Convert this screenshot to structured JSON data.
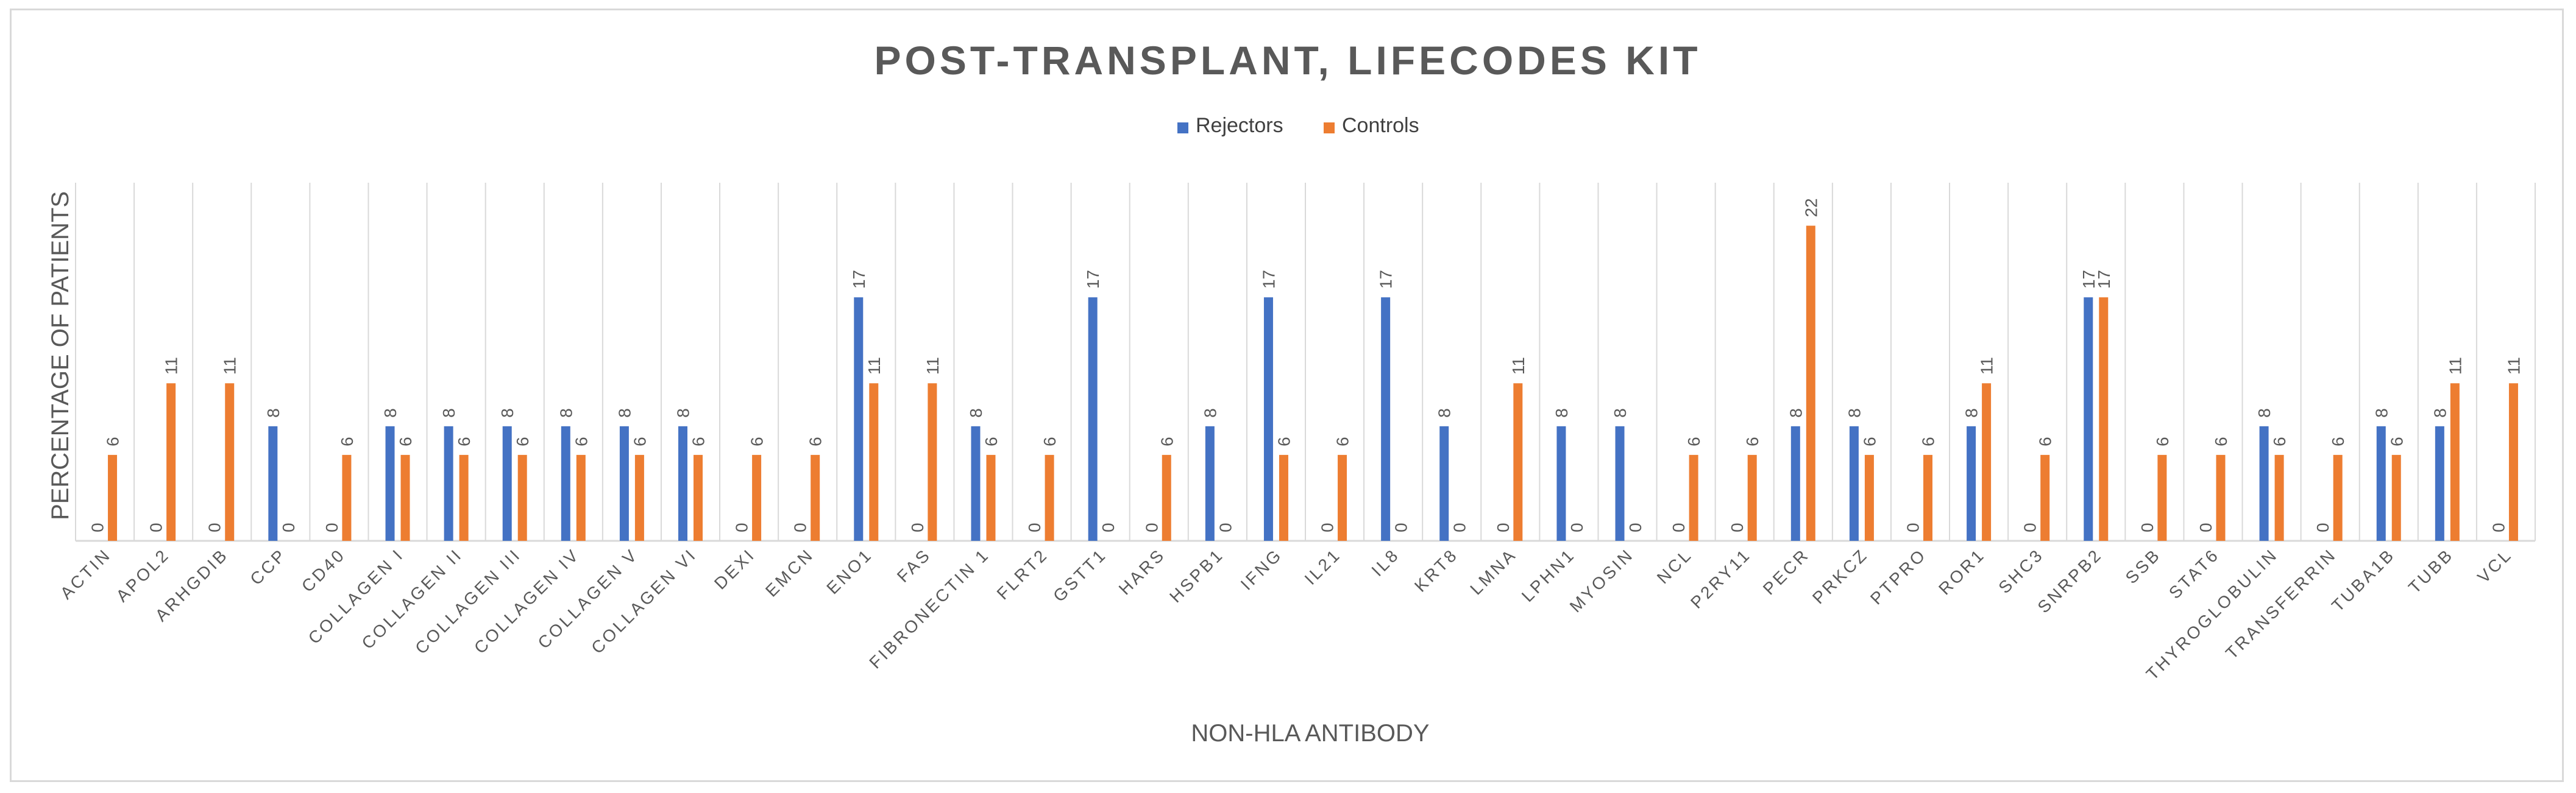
{
  "chart_data": {
    "type": "bar",
    "title": "POST-TRANSPLANT, LIFECODES KIT",
    "xlabel": "NON-HLA ANTIBODY",
    "ylabel": "PERCENTAGE OF PATIENTS",
    "ylim": [
      0,
      25
    ],
    "grid": "vertical category separators",
    "legend_position": "top-center",
    "categories": [
      "ACTIN",
      "APOL2",
      "ARHGDIB",
      "CCP",
      "CD40",
      "COLLAGEN I",
      "COLLAGEN II",
      "COLLAGEN III",
      "COLLAGEN IV",
      "COLLAGEN V",
      "COLLAGEN VI",
      "DEXI",
      "EMCN",
      "ENO1",
      "FAS",
      "FIBRONECTIN 1",
      "FLRT2",
      "GSTT1",
      "HARS",
      "HSPB1",
      "IFNG",
      "IL21",
      "IL8",
      "KRT8",
      "LMNA",
      "LPHN1",
      "MYOSIN",
      "NCL",
      "P2RY11",
      "PECR",
      "PRKCZ",
      "PTPRO",
      "ROR1",
      "SHC3",
      "SNRPB2",
      "SSB",
      "STAT6",
      "THYROGLOBULIN",
      "TRANSFERRIN",
      "TUBA1B",
      "TUBB",
      "VCL"
    ],
    "series": [
      {
        "name": "Rejectors",
        "color": "#4472c4",
        "values": [
          0,
          0,
          0,
          8,
          0,
          8,
          8,
          8,
          8,
          8,
          8,
          0,
          0,
          17,
          0,
          8,
          0,
          17,
          0,
          8,
          17,
          0,
          17,
          8,
          0,
          8,
          8,
          0,
          0,
          8,
          8,
          0,
          8,
          0,
          17,
          0,
          0,
          8,
          0,
          8,
          8,
          0
        ]
      },
      {
        "name": "Controls",
        "color": "#ed7d31",
        "values": [
          6,
          11,
          11,
          0,
          6,
          6,
          6,
          6,
          6,
          6,
          6,
          6,
          6,
          11,
          11,
          6,
          6,
          0,
          6,
          0,
          6,
          6,
          0,
          0,
          11,
          0,
          0,
          6,
          6,
          22,
          6,
          6,
          11,
          6,
          17,
          6,
          6,
          6,
          6,
          6,
          11,
          11
        ]
      }
    ]
  }
}
